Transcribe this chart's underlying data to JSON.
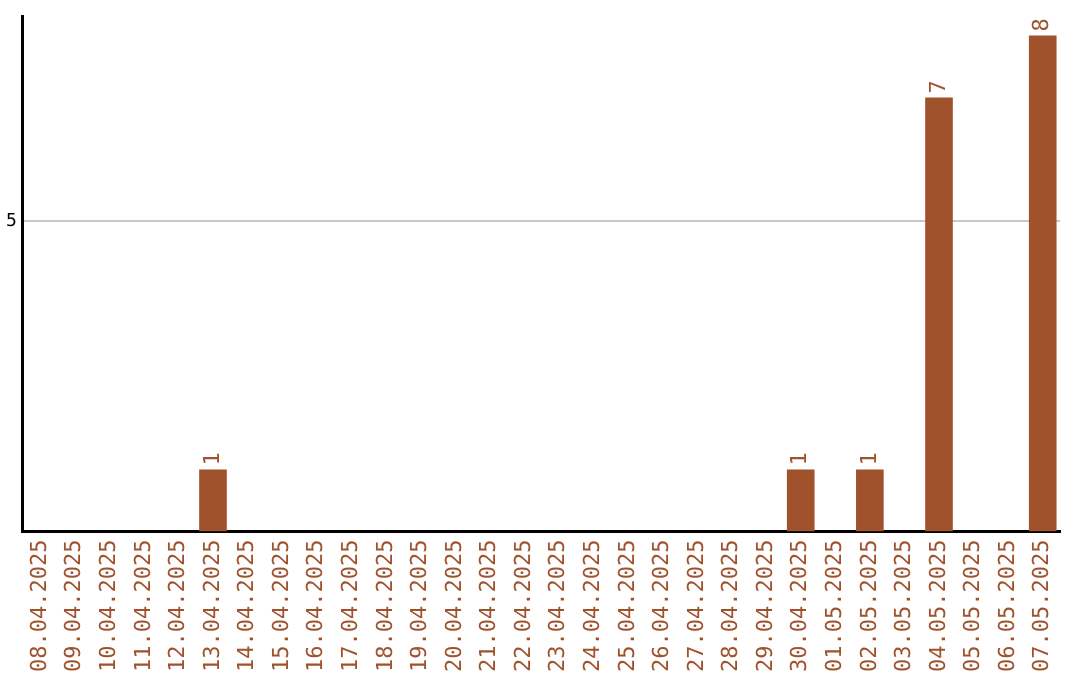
{
  "chart_data": {
    "type": "bar",
    "categories": [
      "08.04.2025",
      "09.04.2025",
      "10.04.2025",
      "11.04.2025",
      "12.04.2025",
      "13.04.2025",
      "14.04.2025",
      "15.04.2025",
      "16.04.2025",
      "17.04.2025",
      "18.04.2025",
      "19.04.2025",
      "20.04.2025",
      "21.04.2025",
      "22.04.2025",
      "23.04.2025",
      "24.04.2025",
      "25.04.2025",
      "26.04.2025",
      "27.04.2025",
      "28.04.2025",
      "29.04.2025",
      "30.04.2025",
      "01.05.2025",
      "02.05.2025",
      "03.05.2025",
      "04.05.2025",
      "05.05.2025",
      "06.05.2025",
      "07.05.2025"
    ],
    "values": [
      0,
      0,
      0,
      0,
      0,
      1,
      0,
      0,
      0,
      0,
      0,
      0,
      0,
      0,
      0,
      0,
      0,
      0,
      0,
      0,
      0,
      0,
      1,
      0,
      1,
      0,
      7,
      0,
      0,
      8
    ],
    "value_labels": [
      null,
      null,
      null,
      null,
      null,
      "1",
      null,
      null,
      null,
      null,
      null,
      null,
      null,
      null,
      null,
      null,
      null,
      null,
      null,
      null,
      null,
      null,
      "1",
      null,
      "1",
      null,
      "7",
      null,
      null,
      "8"
    ],
    "color": "#a0522d",
    "ylim": [
      0,
      8.3
    ],
    "yticks": [
      5
    ],
    "grid": "y",
    "legend": false
  }
}
